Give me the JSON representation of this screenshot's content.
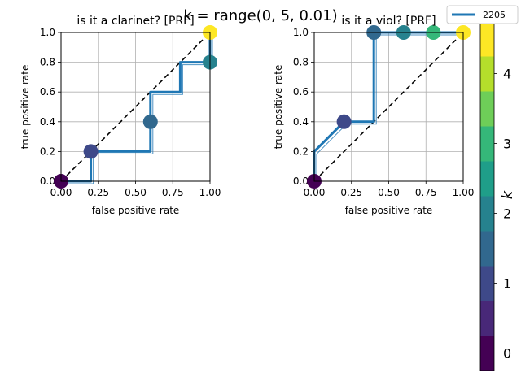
{
  "figure": {
    "suptitle": "k = range(0, 5, 0.01)",
    "legend_label": "2205",
    "colorbar_label": "k",
    "colorbar_ticks": [
      "0",
      "1",
      "2",
      "3",
      "4"
    ],
    "colorbar_colors": [
      "#440154",
      "#482878",
      "#3e4989",
      "#31688e",
      "#26828e",
      "#1f9e89",
      "#35b779",
      "#6ece58",
      "#b5de2b",
      "#fde725"
    ]
  },
  "chart_data": [
    {
      "type": "line",
      "title": "is it a clarinet? [PRF]",
      "xlabel": "false positive rate",
      "ylabel": "true positive rate",
      "xlim": [
        0,
        1
      ],
      "ylim": [
        0,
        1
      ],
      "xticks": [
        "0.00",
        "0.25",
        "0.50",
        "0.75",
        "1.00"
      ],
      "yticks": [
        "0.0",
        "0.2",
        "0.4",
        "0.6",
        "0.8",
        "1.0"
      ],
      "grid": true,
      "legend": "top-right",
      "series": [
        {
          "name": "2205",
          "color": "#1f77b4",
          "x": [
            0,
            0.2,
            0.2,
            0.6,
            0.6,
            0.8,
            0.8,
            1.0,
            1.0
          ],
          "y": [
            0,
            0,
            0.2,
            0.2,
            0.6,
            0.6,
            0.8,
            0.8,
            1.0
          ]
        }
      ],
      "diagonal": [
        [
          0,
          0
        ],
        [
          1,
          1
        ]
      ],
      "markers": [
        {
          "x": 0.0,
          "y": 0.0,
          "color": "#440154"
        },
        {
          "x": 0.2,
          "y": 0.2,
          "color": "#3e4989"
        },
        {
          "x": 0.6,
          "y": 0.4,
          "color": "#31688e"
        },
        {
          "x": 1.0,
          "y": 0.8,
          "color": "#26828e"
        },
        {
          "x": 1.0,
          "y": 1.0,
          "color": "#fde725"
        }
      ]
    },
    {
      "type": "line",
      "title": "is it a viol? [PRF]",
      "xlabel": "false positive rate",
      "ylabel": "true positive rate",
      "xlim": [
        0,
        1
      ],
      "ylim": [
        0,
        1
      ],
      "xticks": [
        "0.00",
        "0.25",
        "0.50",
        "0.75",
        "1.00"
      ],
      "yticks": [
        "0.0",
        "0.2",
        "0.4",
        "0.6",
        "0.8",
        "1.0"
      ],
      "grid": true,
      "series": [
        {
          "name": "2205",
          "color": "#1f77b4",
          "x": [
            0,
            0,
            0.2,
            0.4,
            0.4,
            0.6,
            0.8,
            1.0
          ],
          "y": [
            0,
            0.2,
            0.4,
            0.4,
            1.0,
            1.0,
            1.0,
            1.0
          ]
        }
      ],
      "diagonal": [
        [
          0,
          0
        ],
        [
          1,
          1
        ]
      ],
      "markers": [
        {
          "x": 0.0,
          "y": 0.0,
          "color": "#440154"
        },
        {
          "x": 0.2,
          "y": 0.4,
          "color": "#3e4989"
        },
        {
          "x": 0.4,
          "y": 1.0,
          "color": "#31688e"
        },
        {
          "x": 0.6,
          "y": 1.0,
          "color": "#26828e"
        },
        {
          "x": 0.8,
          "y": 1.0,
          "color": "#35b779"
        },
        {
          "x": 1.0,
          "y": 1.0,
          "color": "#fde725"
        }
      ]
    }
  ]
}
